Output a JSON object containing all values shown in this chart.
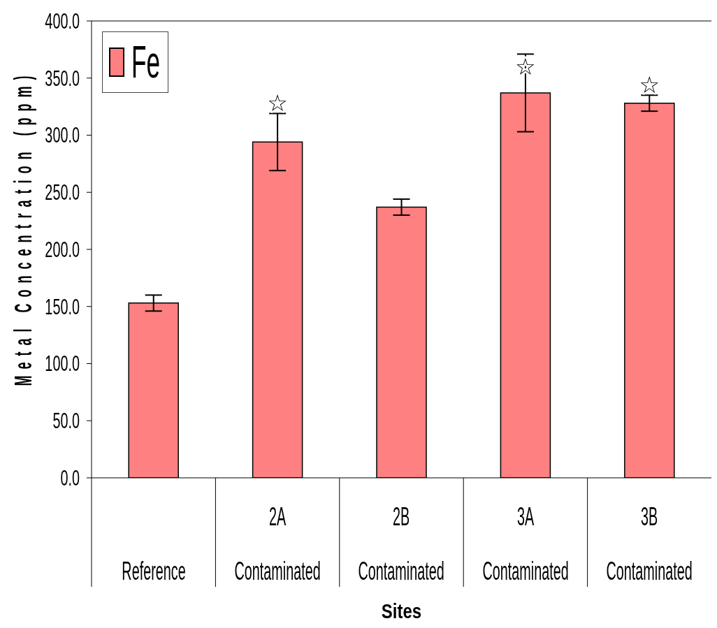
{
  "chart_data": {
    "type": "bar",
    "categories": [
      "Reference",
      "2A\nContaminated",
      "2B\nContaminated",
      "3A\nContaminated",
      "3B\nContaminated"
    ],
    "series": [
      {
        "name": "Fe",
        "color": "#ff8080",
        "values": [
          153,
          294,
          237,
          337,
          328
        ],
        "errors": [
          7,
          25,
          7,
          34,
          7
        ]
      }
    ],
    "xlabel": "Sites",
    "ylabel": "Metal Concentration (ppm)",
    "ylim": [
      0,
      400
    ],
    "yticks": [
      {
        "value": 0,
        "label": "0.0"
      },
      {
        "value": 50,
        "label": "50.0"
      },
      {
        "value": 100,
        "label": "100.0"
      },
      {
        "value": 150,
        "label": "150.0"
      },
      {
        "value": 200,
        "label": "200.0"
      },
      {
        "value": 250,
        "label": "250.0"
      },
      {
        "value": 300,
        "label": "300.0"
      },
      {
        "value": 350,
        "label": "350.0"
      },
      {
        "value": 400,
        "label": "400.0"
      }
    ],
    "legend": "top left",
    "annotations": [
      {
        "text": "☆",
        "x": "2A\nContaminated",
        "y": 319
      },
      {
        "text": "☆",
        "x": "3A\nContaminated",
        "y": 351
      },
      {
        "text": "☆",
        "x": "3B\nContaminated",
        "y": 335
      }
    ]
  }
}
